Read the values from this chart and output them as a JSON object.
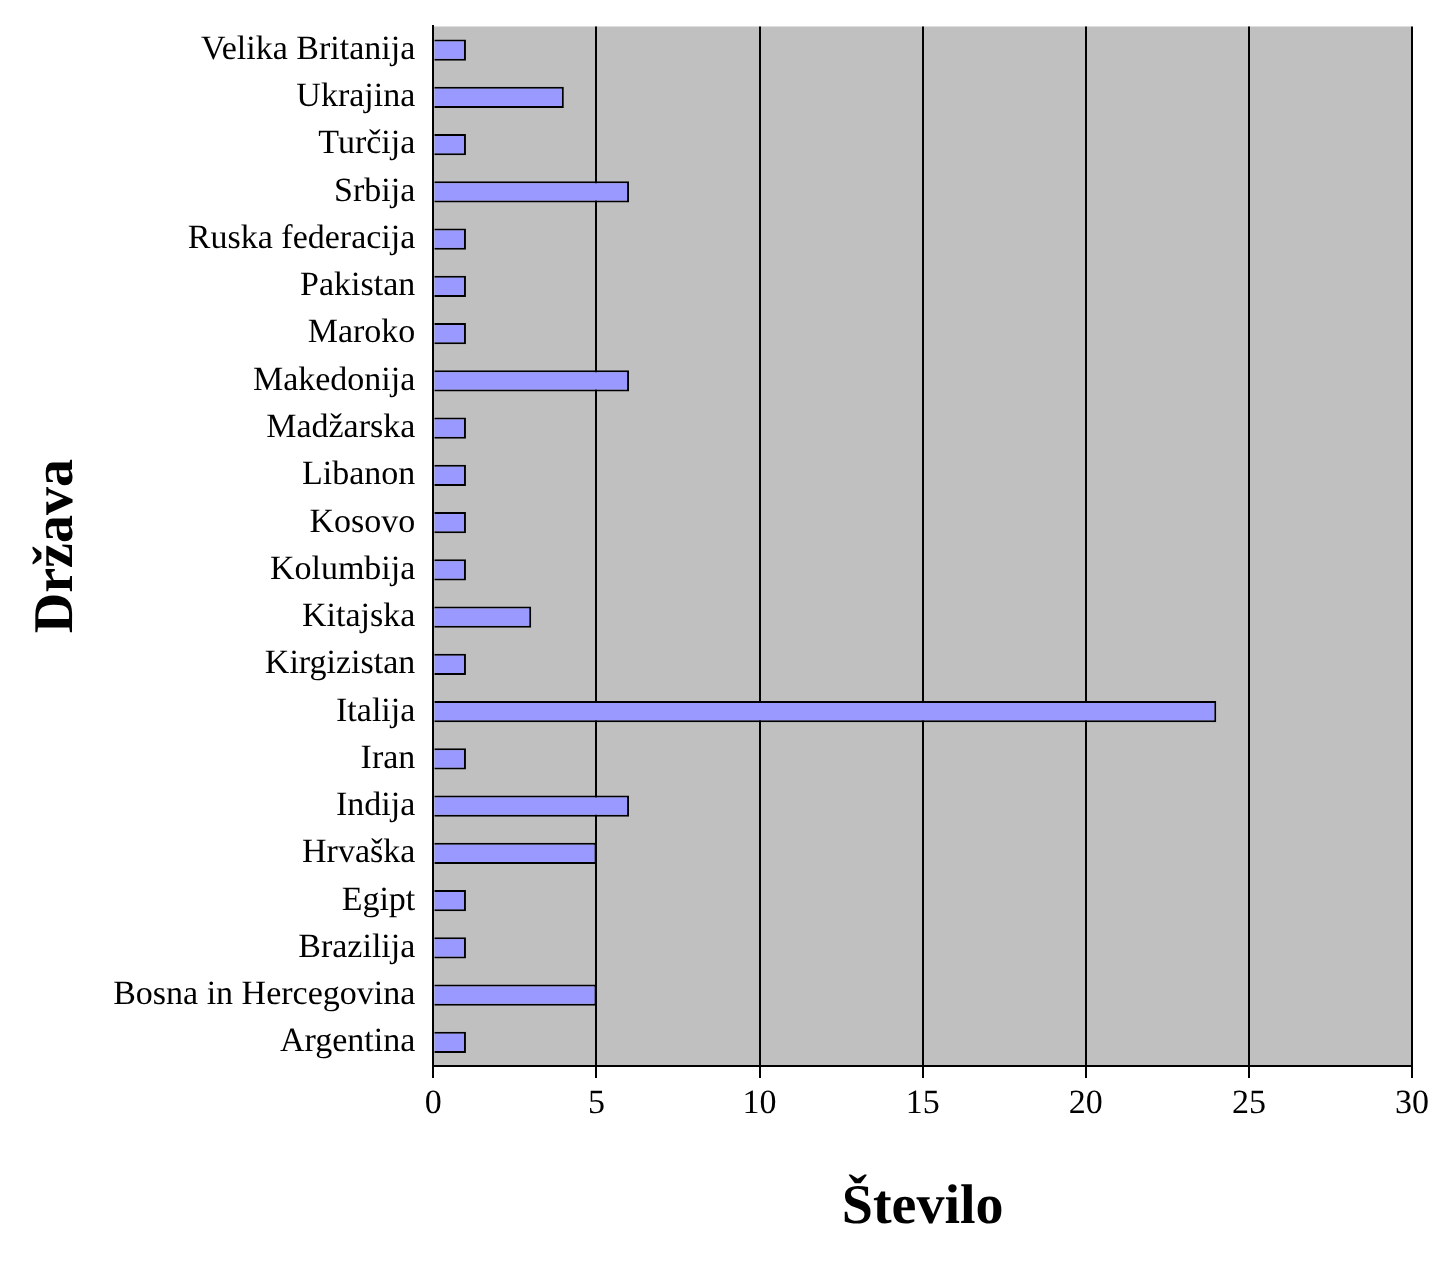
{
  "chart_data": {
    "type": "bar",
    "orientation": "horizontal",
    "xlabel": "Število",
    "ylabel": "Država",
    "categories": [
      "Velika Britanija",
      "Ukrajina",
      "Turčija",
      "Srbija",
      "Ruska federacija",
      "Pakistan",
      "Maroko",
      "Makedonija",
      "Madžarska",
      "Libanon",
      "Kosovo",
      "Kolumbija",
      "Kitajska",
      "Kirgizistan",
      "Italija",
      "Iran",
      "Indija",
      "Hrvaška",
      "Egipt",
      "Brazilija",
      "Bosna in Hercegovina",
      "Argentina"
    ],
    "values": [
      1,
      4,
      1,
      6,
      1,
      1,
      1,
      6,
      1,
      1,
      1,
      1,
      3,
      1,
      24,
      1,
      6,
      5,
      1,
      1,
      5,
      1
    ],
    "color": "#9999ff",
    "xlim": [
      0,
      30
    ],
    "xticks": [
      0,
      5,
      10,
      15,
      20,
      25,
      30
    ],
    "grid": "x",
    "legend": false
  }
}
